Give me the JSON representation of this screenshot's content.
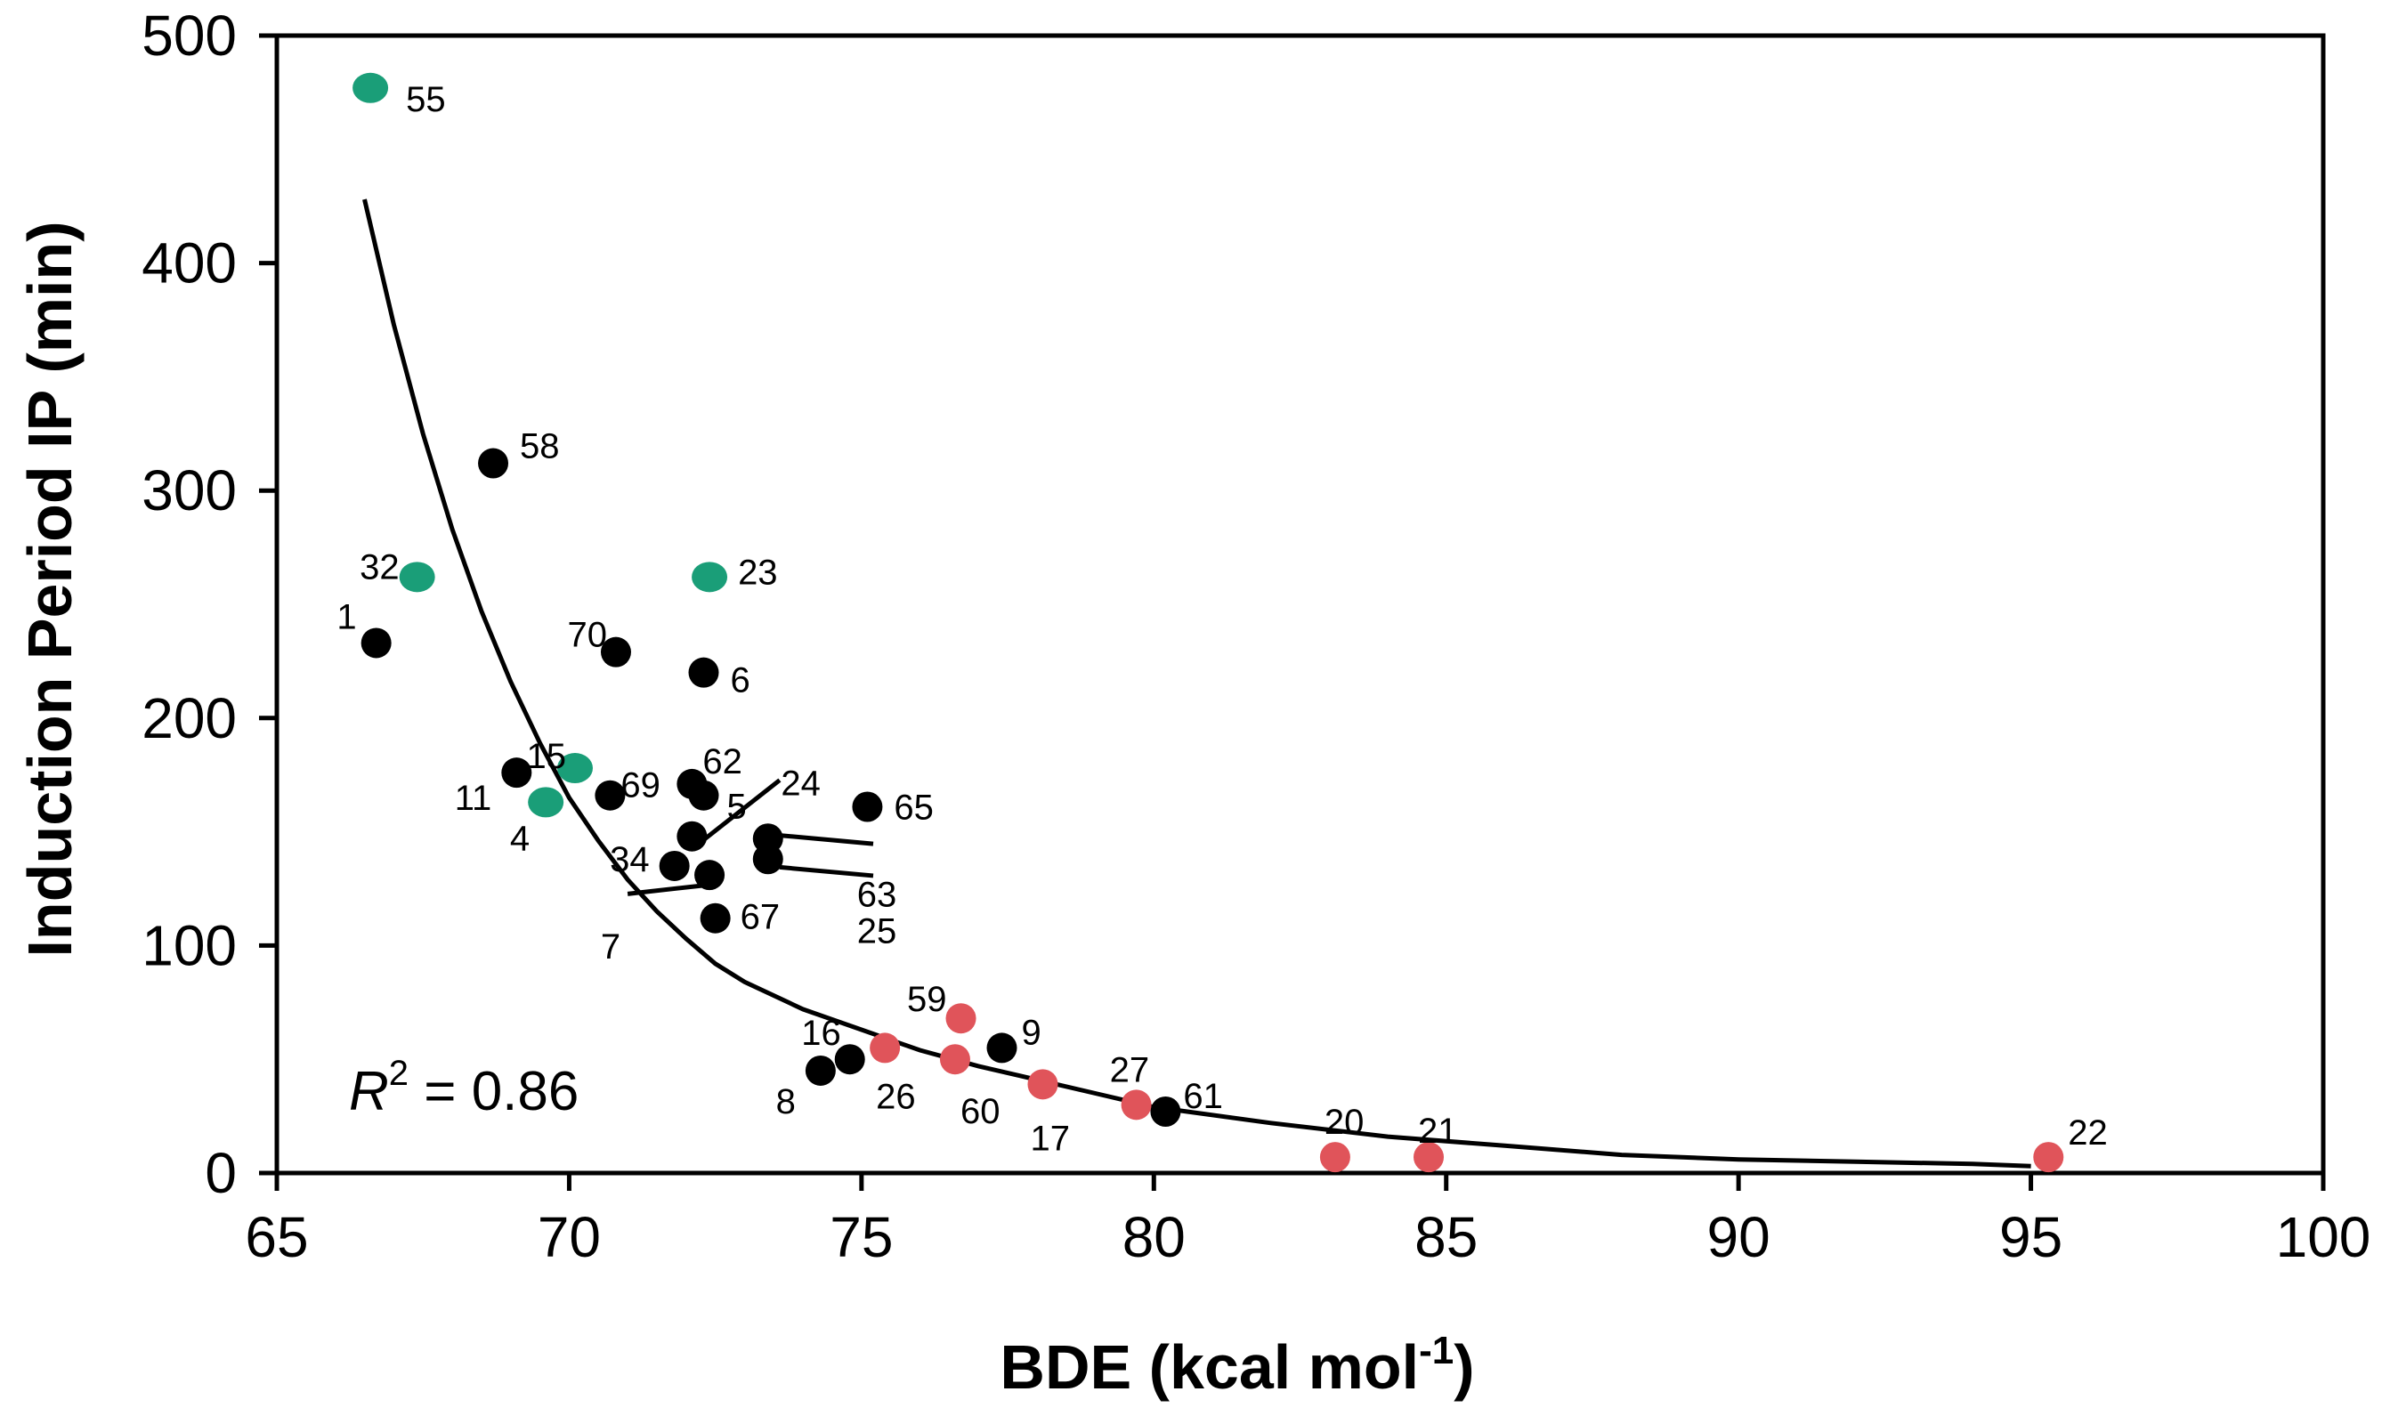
{
  "chart_data": {
    "type": "scatter",
    "title": "",
    "xlabel": "BDE (kcal mol",
    "xlabel_sup": "-1",
    "xlabel_end": ")",
    "ylabel": "Induction Period IP (min)",
    "xlim": [
      65,
      100
    ],
    "ylim": [
      0,
      500
    ],
    "xticks": [
      65,
      70,
      75,
      80,
      85,
      90,
      95,
      100
    ],
    "yticks": [
      0,
      100,
      200,
      300,
      400,
      500
    ],
    "xtick_labels": [
      "65",
      "70",
      "75",
      "80",
      "85",
      "90",
      "95",
      "100"
    ],
    "ytick_labels": [
      "0",
      "100",
      "200",
      "300",
      "400",
      "500"
    ],
    "annotation": {
      "r_letter": "R",
      "sup": "2",
      "text": " = 0.86"
    },
    "colors": {
      "green": "#1a9e78",
      "red": "#e0545a",
      "black": "#000000"
    },
    "series": [
      {
        "name": "green",
        "color": "#1a9e78",
        "points": [
          {
            "label": "55",
            "x": 66.6,
            "y": 477
          },
          {
            "label": "32",
            "x": 67.4,
            "y": 262
          },
          {
            "label": "23",
            "x": 72.4,
            "y": 262
          },
          {
            "label": "15",
            "x": 70.1,
            "y": 178
          },
          {
            "label": "4",
            "x": 69.6,
            "y": 163
          }
        ]
      },
      {
        "name": "black",
        "color": "#000000",
        "points": [
          {
            "label": "58",
            "x": 68.7,
            "y": 312
          },
          {
            "label": "1",
            "x": 66.7,
            "y": 233
          },
          {
            "label": "70",
            "x": 70.8,
            "y": 229
          },
          {
            "label": "6",
            "x": 72.3,
            "y": 220
          },
          {
            "label": "11",
            "x": 69.1,
            "y": 176
          },
          {
            "label": "69",
            "x": 70.7,
            "y": 166
          },
          {
            "label": "62",
            "x": 72.1,
            "y": 171
          },
          {
            "label": "5",
            "x": 72.3,
            "y": 166
          },
          {
            "label": "24",
            "x": 72.1,
            "y": 148
          },
          {
            "label": "65",
            "x": 75.1,
            "y": 161
          },
          {
            "label": "63",
            "x": 73.4,
            "y": 147
          },
          {
            "label": "25",
            "x": 73.4,
            "y": 138
          },
          {
            "label": "34",
            "x": 71.8,
            "y": 135
          },
          {
            "label": "7",
            "x": 72.4,
            "y": 131
          },
          {
            "label": "67",
            "x": 72.5,
            "y": 112
          },
          {
            "label": "16",
            "x": 74.8,
            "y": 50
          },
          {
            "label": "8",
            "x": 74.3,
            "y": 45
          },
          {
            "label": "9",
            "x": 77.4,
            "y": 55
          },
          {
            "label": "61",
            "x": 80.2,
            "y": 27
          }
        ]
      },
      {
        "name": "red",
        "color": "#e0545a",
        "points": [
          {
            "label": "59",
            "x": 76.7,
            "y": 68
          },
          {
            "label": "26",
            "x": 75.4,
            "y": 55
          },
          {
            "label": "60",
            "x": 76.6,
            "y": 50
          },
          {
            "label": "17",
            "x": 78.1,
            "y": 39
          },
          {
            "label": "27",
            "x": 79.7,
            "y": 30
          },
          {
            "label": "20",
            "x": 83.1,
            "y": 7
          },
          {
            "label": "21",
            "x": 84.7,
            "y": 7
          },
          {
            "label": "22",
            "x": 95.3,
            "y": 7
          }
        ]
      }
    ],
    "fit_curve": {
      "x": [
        66.5,
        67,
        67.5,
        68,
        68.5,
        69,
        69.5,
        70,
        70.5,
        71,
        71.5,
        72,
        72.5,
        73,
        74,
        75,
        76,
        77,
        78,
        79,
        80,
        82,
        84,
        86,
        88,
        90,
        92,
        94,
        95
      ],
      "y": [
        428,
        373,
        325,
        283,
        247,
        216,
        189,
        165,
        146,
        129,
        115,
        103,
        92,
        84,
        72,
        63,
        54,
        47,
        41,
        35,
        29,
        22,
        16,
        12,
        8,
        6,
        5,
        4,
        3
      ]
    }
  }
}
